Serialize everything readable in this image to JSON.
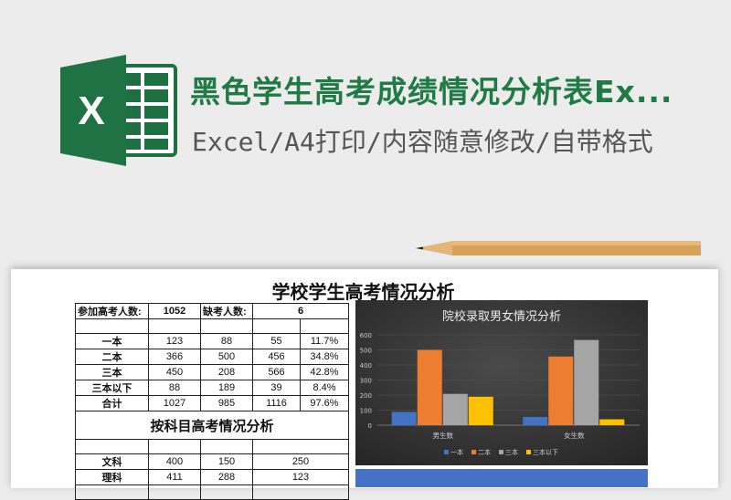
{
  "header": {
    "title": "黑色学生高考成绩情况分析表Ex...",
    "subtitle": "Excel/A4打印/内容随意修改/自带格式",
    "logo_letter": "X"
  },
  "sheet": {
    "title": "学校学生高考情况分析",
    "summary": {
      "label1": "参加高考人数:",
      "value1": "1052",
      "label2": "缺考人数:",
      "value2": "6"
    },
    "rows": [
      [
        "一本",
        "123",
        "88",
        "55",
        "11.7%"
      ],
      [
        "二本",
        "366",
        "500",
        "456",
        "34.8%"
      ],
      [
        "三本",
        "450",
        "208",
        "566",
        "42.8%"
      ],
      [
        "三本以下",
        "88",
        "189",
        "39",
        "8.4%"
      ],
      [
        "合计",
        "1027",
        "985",
        "1116",
        "97.6%"
      ]
    ],
    "section2_title": "按科目高考情况分析",
    "rows2": [
      [
        "文科",
        "400",
        "150",
        "250"
      ],
      [
        "理科",
        "411",
        "288",
        "123"
      ]
    ]
  },
  "chart_data": {
    "type": "bar",
    "title": "院校录取男女情况分析",
    "categories": [
      "男生数",
      "女生数"
    ],
    "series": [
      {
        "name": "一本",
        "values": [
          88,
          55
        ],
        "color": "#4472c4"
      },
      {
        "name": "二本",
        "values": [
          500,
          456
        ],
        "color": "#ed7d31"
      },
      {
        "name": "三本",
        "values": [
          208,
          566
        ],
        "color": "#a5a5a5"
      },
      {
        "name": "三本以下",
        "values": [
          189,
          39
        ],
        "color": "#ffc000"
      }
    ],
    "ylim": [
      0,
      600
    ],
    "yticks": [
      0,
      100,
      200,
      300,
      400,
      500,
      600
    ],
    "grid": true,
    "legend": "bottom",
    "background": "#333333"
  }
}
